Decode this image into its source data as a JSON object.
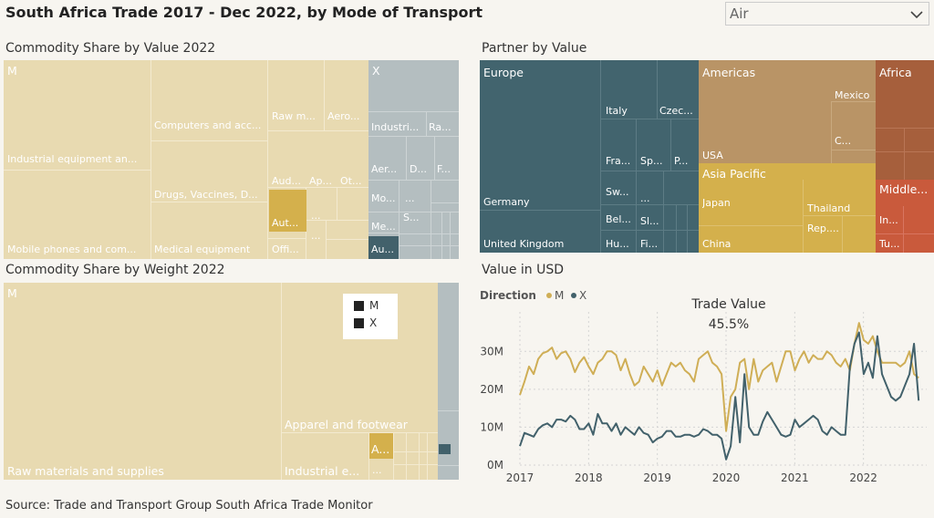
{
  "header": {
    "title": "South Africa Trade 2017 - Dec 2022, by Mode of Transport"
  },
  "filter": {
    "selected": "Air"
  },
  "panels": {
    "value_title": "Commodity Share by Value 2022",
    "partner_title": "Partner by Value",
    "weight_title": "Commodity Share by Weight 2022",
    "usd_title": "Value in USD"
  },
  "colors": {
    "m_light": "#e8dab1",
    "m_selected": "#d4b04c",
    "x_light": "#b4bec0",
    "x_selected": "#42616b",
    "europe": "#42646e",
    "americas": "#b99466",
    "asia": "#d4b04c",
    "africa": "#a65f3c",
    "middle_east": "#c95a3c",
    "line_m": "#cfae56",
    "line_x": "#42616b"
  },
  "value_treemap": {
    "m": "M",
    "x": "X",
    "labels": {
      "industrial": "Industrial equipment an...",
      "mobile": "Mobile phones and com...",
      "computers": "Computers and acc...",
      "drugs": "Drugs, Vaccines, D...",
      "medical": "Medical equipment",
      "raw": "Raw m...",
      "aero_m": "Aero...",
      "aud": "Aud...",
      "ap": "Ap...",
      "ot": "Ot...",
      "aut": "Aut...",
      "offi": "Offi...",
      "dots1": "...",
      "dots2": "...",
      "x_industri": "Industri...",
      "x_ra": "Ra...",
      "x_aer": "Aer...",
      "x_d": "D...",
      "x_f": "F...",
      "x_mo": "Mo...",
      "x_dots": "...",
      "x_s": "S...",
      "x_me": "Me...",
      "x_au": "Au..."
    }
  },
  "partner_treemap": {
    "europe": "Europe",
    "italy": "Italy",
    "czec": "Czec...",
    "germany": "Germany",
    "fra": "Fra...",
    "sp": "Sp...",
    "p": "P...",
    "sw": "Sw...",
    "dots": "...",
    "bel": "Bel...",
    "sl": "Sl...",
    "hu": "Hu...",
    "fi": "Fi...",
    "uk": "United Kingdom",
    "americas": "Americas",
    "mexico": "Mexico",
    "c": "C...",
    "usa": "USA",
    "asia": "Asia Pacific",
    "japan": "Japan",
    "thailand": "Thailand",
    "rep": "Rep....",
    "china": "China",
    "africa": "Africa",
    "middle": "Middle...",
    "in": "In...",
    "tu": "Tu..."
  },
  "weight_treemap": {
    "m": "M",
    "raw": "Raw materials and supplies",
    "apparel": "Apparel and footwear",
    "industrial": "Industrial e...",
    "a": "A...",
    "dots": "...",
    "legend": [
      {
        "label": "M"
      },
      {
        "label": "X"
      }
    ]
  },
  "chart_data": {
    "type": "line",
    "title": "Value in USD",
    "legend_title": "Direction",
    "legend_placement": "top-left",
    "annotation": {
      "label": "Trade Value",
      "value": "45.5%"
    },
    "x_ticks": [
      "2017",
      "2018",
      "2019",
      "2020",
      "2021",
      "2022"
    ],
    "y_ticks": [
      "0M",
      "10M",
      "20M",
      "30M"
    ],
    "ylim": [
      0,
      38
    ],
    "xlim": [
      2017.0,
      2023.0
    ],
    "grid": true,
    "series": [
      {
        "name": "M",
        "values": [
          18.5,
          22,
          26,
          24,
          28,
          29.5,
          30,
          31,
          28,
          29.5,
          30,
          28,
          24.5,
          27,
          28.5,
          26,
          24,
          27,
          28,
          30,
          30,
          29,
          25,
          28,
          24,
          21,
          22,
          26,
          24,
          22,
          25,
          21,
          24,
          27,
          26,
          27,
          25,
          24,
          22,
          28,
          29,
          30,
          27,
          26,
          24,
          9,
          18,
          20,
          27,
          28,
          20,
          28,
          22,
          25,
          26,
          27,
          22,
          26,
          30,
          30,
          25,
          28,
          30,
          27,
          29,
          28,
          28,
          30,
          29,
          27,
          26,
          28,
          25,
          32,
          37.5,
          33,
          32,
          34,
          30,
          27,
          27,
          27,
          27,
          26,
          27,
          30,
          24,
          23
        ],
        "x_start": 2017.0,
        "x_step": 0.0667
      },
      {
        "name": "X",
        "values": [
          5,
          8.5,
          8,
          7.5,
          9.5,
          10.5,
          11,
          10,
          12,
          12,
          11.5,
          13,
          12,
          9.5,
          9.5,
          11,
          8,
          13.5,
          11,
          11,
          9,
          11,
          8,
          10,
          9,
          8,
          10,
          8.5,
          8,
          6,
          7,
          7.5,
          9,
          9,
          7.5,
          7.5,
          8,
          8,
          7.5,
          8,
          9.5,
          9,
          8,
          8,
          7,
          1.5,
          5,
          18,
          6,
          24,
          10,
          8,
          8,
          11.5,
          14,
          12,
          10,
          8,
          7.5,
          8,
          12,
          10,
          11,
          12,
          13,
          12,
          9,
          8,
          10,
          9,
          8,
          8,
          26,
          32,
          35,
          24,
          27,
          23,
          34,
          24,
          21,
          18,
          17,
          18,
          21,
          24,
          32,
          17
        ],
        "x_start": 2017.0,
        "x_step": 0.0667
      }
    ]
  },
  "footer": {
    "source": "Source: Trade and Transport Group South Africa Trade Monitor"
  }
}
